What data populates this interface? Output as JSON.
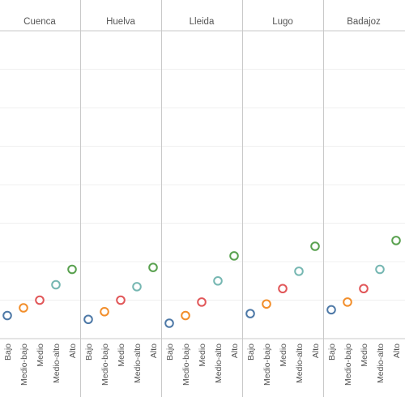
{
  "chart_data": {
    "type": "scatter",
    "panels": [
      "Cuenca",
      "Huelva",
      "Lleida",
      "Lugo",
      "Badajoz"
    ],
    "categories": [
      "Bajo",
      "Medio-bajo",
      "Medio",
      "Medio-alto",
      "Alto"
    ],
    "category_colors": [
      "#4e79a7",
      "#f28e2b",
      "#e15759",
      "#76b7b2",
      "#59a14f"
    ],
    "ylim": [
      0,
      8
    ],
    "grid": true,
    "series": [
      {
        "panel": "Cuenca",
        "values": [
          0.6,
          0.8,
          1.0,
          1.4,
          1.8
        ]
      },
      {
        "panel": "Huelva",
        "values": [
          0.5,
          0.7,
          1.0,
          1.35,
          1.85
        ]
      },
      {
        "panel": "Lleida",
        "values": [
          0.4,
          0.6,
          0.95,
          1.5,
          2.15
        ]
      },
      {
        "panel": "Lugo",
        "values": [
          0.65,
          0.9,
          1.3,
          1.75,
          2.4
        ]
      },
      {
        "panel": "Badajoz",
        "values": [
          0.75,
          0.95,
          1.3,
          1.8,
          2.55
        ]
      }
    ]
  }
}
